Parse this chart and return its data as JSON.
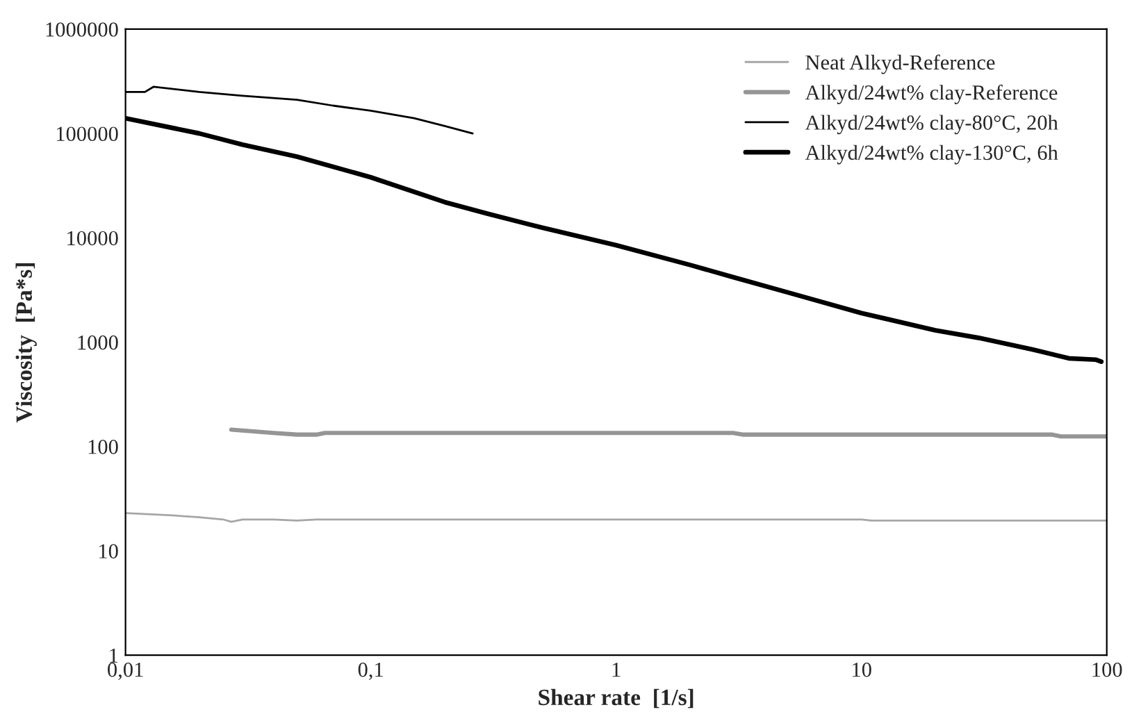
{
  "chart_data": {
    "type": "line",
    "xlabel": "Shear rate  [1/s]",
    "ylabel": "Viscosity  [Pa*s]",
    "log": "xy",
    "grid": false,
    "legend": "top right",
    "marker": "none",
    "line_style": "solid",
    "xlim": [
      0.01,
      100
    ],
    "xticks": [
      {
        "value": 0.01,
        "label": "0,01"
      },
      {
        "value": 0.1,
        "label": "0,1"
      },
      1,
      10,
      100
    ],
    "ylim": [
      1,
      1000000
    ],
    "yticks": [
      1,
      10,
      100,
      1000,
      10000,
      100000,
      1000000
    ],
    "series": [
      {
        "name": "Neat Alkyd-Reference",
        "color": "#a6a6a6",
        "x": [
          0.01,
          0.015,
          0.02,
          0.025,
          0.027,
          0.03,
          0.04,
          0.05,
          0.06,
          1,
          10,
          11,
          100
        ],
        "values": [
          23,
          22,
          21,
          20,
          19,
          20,
          20,
          19.5,
          20,
          20,
          20,
          19.5,
          19.5
        ]
      },
      {
        "name": "Alkyd/24wt% clay-Reference",
        "color": "#959595",
        "x": [
          0.027,
          0.04,
          0.05,
          0.06,
          0.065,
          1,
          3,
          3.3,
          60,
          65,
          100
        ],
        "values": [
          145,
          135,
          130,
          130,
          135,
          135,
          135,
          130,
          130,
          125,
          125
        ]
      },
      {
        "name": "Alkyd/24wt% clay-80°C, 20h",
        "color": "#000000",
        "x": [
          0.01,
          0.012,
          0.013,
          0.02,
          0.03,
          0.05,
          0.07,
          0.1,
          0.15,
          0.2,
          0.26
        ],
        "values": [
          250000,
          250000,
          280000,
          250000,
          230000,
          210000,
          185000,
          165000,
          140000,
          118000,
          100000
        ]
      },
      {
        "name": "Alkyd/24wt% clay-130°C, 6h",
        "color": "#000000",
        "x": [
          0.01,
          0.02,
          0.03,
          0.05,
          0.1,
          0.2,
          0.3,
          0.5,
          1,
          2,
          3,
          5,
          10,
          20,
          30,
          50,
          70,
          90,
          95
        ],
        "values": [
          140000,
          100000,
          78000,
          60000,
          38000,
          22000,
          17000,
          12500,
          8500,
          5500,
          4200,
          3000,
          1900,
          1300,
          1100,
          850,
          700,
          680,
          650
        ]
      }
    ]
  }
}
